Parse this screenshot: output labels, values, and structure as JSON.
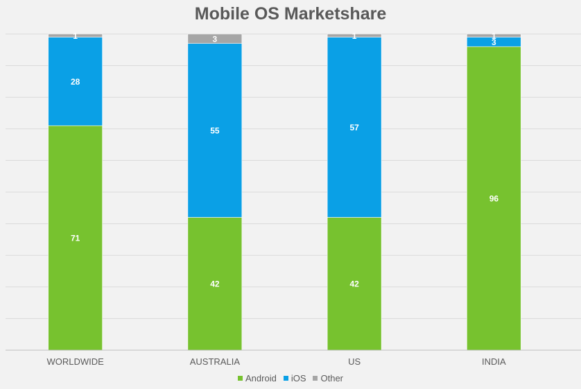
{
  "chart_data": {
    "type": "bar",
    "stacked": true,
    "title": "Mobile OS Marketshare",
    "xlabel": "",
    "ylabel": "",
    "ylim": [
      0,
      100
    ],
    "grid": true,
    "legend_position": "bottom",
    "categories": [
      "WORLDWIDE",
      "AUSTRALIA",
      "US",
      "INDIA"
    ],
    "series": [
      {
        "name": "Android",
        "color": "#77c22f",
        "values": [
          71,
          42,
          42,
          96
        ]
      },
      {
        "name": "iOS",
        "color": "#0aa0e6",
        "values": [
          28,
          55,
          57,
          3
        ]
      },
      {
        "name": "Other",
        "color": "#a6a6a6",
        "values": [
          1,
          3,
          1,
          1
        ]
      }
    ]
  }
}
